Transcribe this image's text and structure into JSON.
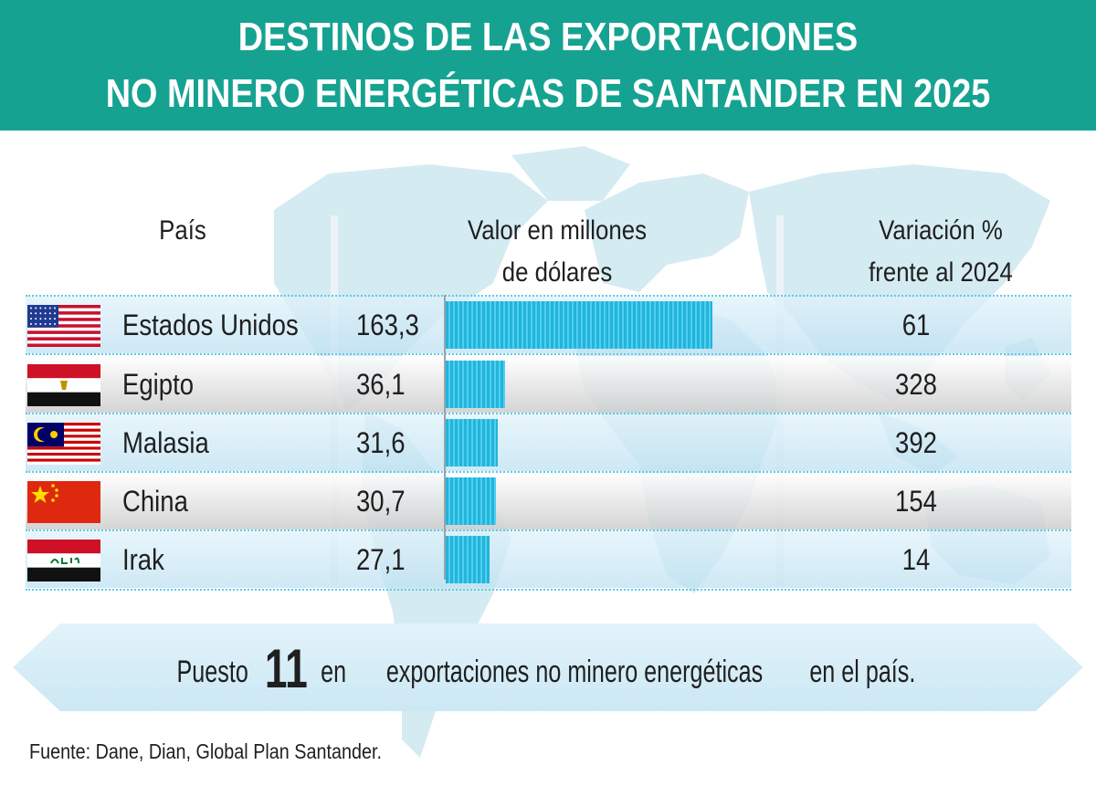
{
  "title": {
    "line1": "DESTINOS DE LAS EXPORTACIONES",
    "line2": "NO MINERO ENERGÉTICAS DE SANTANDER EN 2025"
  },
  "headers": {
    "country": "País",
    "value_line1": "Valor en millones",
    "value_line2": "de dólares",
    "variation_line1": "Variación %",
    "variation_line2": "frente al 2024"
  },
  "chart_data": {
    "type": "bar",
    "orientation": "horizontal",
    "categories": [
      "Estados Unidos",
      "Egipto",
      "Malasia",
      "China",
      "Irak"
    ],
    "series": [
      {
        "values": [
          163.3,
          36.1,
          31.6,
          30.7,
          27.1
        ]
      }
    ],
    "value_labels": [
      "163,3",
      "36,1",
      "31,6",
      "30,7",
      "27,1"
    ],
    "variation_pct": [
      "61",
      "328",
      "392",
      "154",
      "14"
    ],
    "flags": [
      "usa-flag",
      "egypt-flag",
      "malaysia-flag",
      "china-flag",
      "iraq-flag"
    ],
    "bar_color": "#22b4dc"
  },
  "footer": {
    "prefix": "Puesto",
    "number": "11",
    "middle": "en",
    "bold_text": "exportaciones no minero energéticas",
    "suffix": "en el país."
  },
  "source": "Fuente: Dane, Dian, Global Plan Santander.",
  "colors": {
    "title_band": "#16a291",
    "map": "#d5ebf2",
    "bar": "#22b4dc"
  }
}
